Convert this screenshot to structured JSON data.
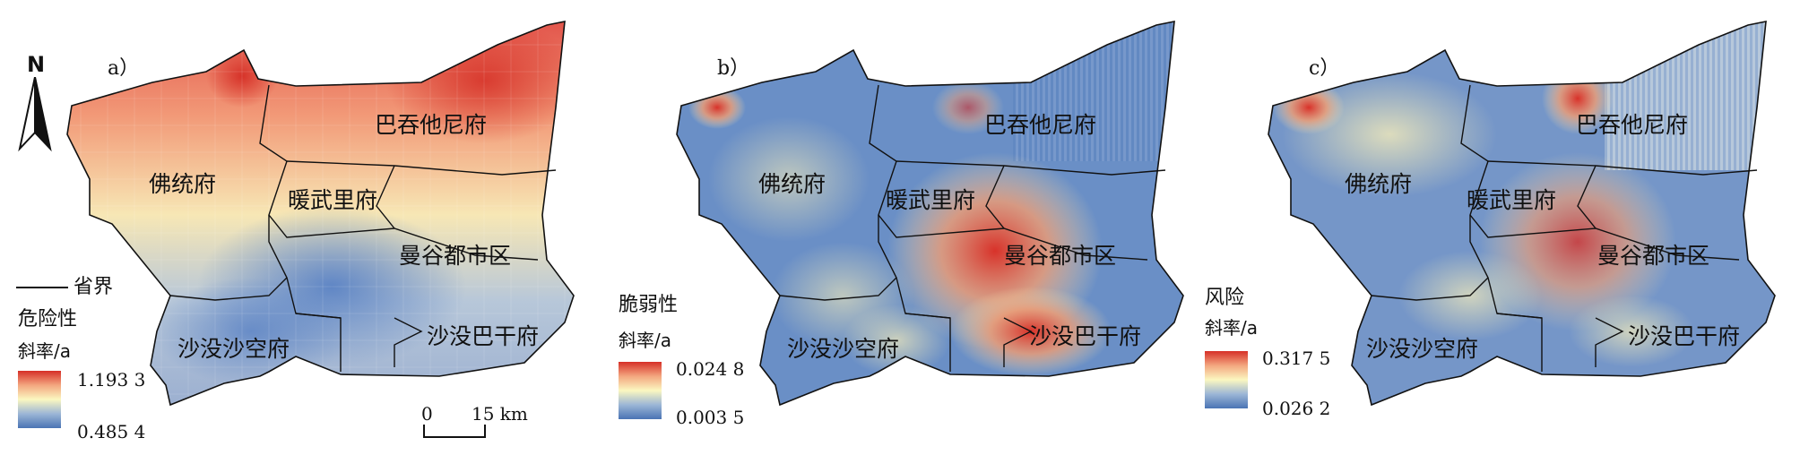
{
  "colors": {
    "high": "#d62f27",
    "mid": "#fbf7c0",
    "low": "#4a74b4",
    "boundary": "#111111"
  },
  "provinces": [
    "佛统府",
    "巴吞他尼府",
    "暖武里府",
    "曼谷都市区",
    "沙没沙空府",
    "沙没巴干府"
  ],
  "panels": [
    {
      "label": "a）",
      "legend_title": "危险性",
      "legend_unit": "斜率/a",
      "legend_max": "1.193 3",
      "legend_min": "0.485 4",
      "region_labels": [
        "佛统府",
        "巴吞他尼府",
        "暖武里府",
        "曼谷都市区",
        "沙没沙空府",
        "沙没巴干府"
      ]
    },
    {
      "label": "b）",
      "legend_title": "脆弱性",
      "legend_unit": "斜率/a",
      "legend_max": "0.024 8",
      "legend_min": "0.003 5",
      "region_labels": [
        "佛统府",
        "巴吞他尼府",
        "暖武里府",
        "曼谷都市区",
        "沙没沙空府",
        "沙没巴干府"
      ]
    },
    {
      "label": "c）",
      "legend_title": "风险",
      "legend_unit": "斜率/a",
      "legend_max": "0.317 5",
      "legend_min": "0.026 2",
      "region_labels": [
        "佛统府",
        "巴吞他尼府",
        "暖武里府",
        "曼谷都市区",
        "沙没沙空府",
        "沙没巴干府"
      ]
    }
  ],
  "boundary_legend": "省界",
  "north_label": "N",
  "scale": {
    "start": "0",
    "end": "15 km"
  }
}
